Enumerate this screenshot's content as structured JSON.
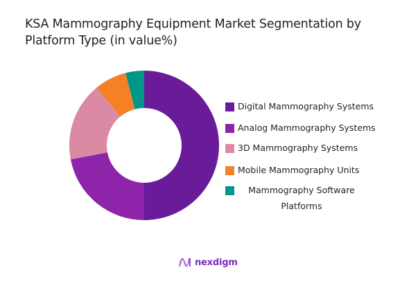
{
  "title": {
    "line1": "KSA Mammography Equipment Market Segmentation by",
    "line2": "Platform Type (in value%)"
  },
  "brand": {
    "name": "nexdigm",
    "icon": "nexdigm-wave-logo-icon",
    "color": "#7a2fb8"
  },
  "legend": {
    "items": [
      {
        "label": "Digital Mammography Systems",
        "color": "#6A1B9A"
      },
      {
        "label": "Analog Mammography Systems",
        "color": "#8E24AA"
      },
      {
        "label": "3D Mammography Systems",
        "color": "#DB8AA3"
      },
      {
        "label": "Mobile Mammography Units",
        "color": "#F58025"
      },
      {
        "label_line1": "Mammography Software",
        "label_line2": "Platforms",
        "label": "Mammography Software Platforms",
        "color": "#009688"
      }
    ]
  },
  "chart_data": {
    "type": "pie",
    "variant": "donut",
    "title": "KSA Mammography Equipment Market Segmentation by Platform Type (in value%)",
    "categories": [
      "Digital Mammography Systems",
      "Analog Mammography Systems",
      "3D Mammography Systems",
      "Mobile Mammography Units",
      "Mammography Software Platforms"
    ],
    "values": [
      50,
      22,
      17,
      7,
      4
    ],
    "unit": "%",
    "colors": [
      "#6A1B9A",
      "#8E24AA",
      "#DB8AA3",
      "#F58025",
      "#009688"
    ],
    "start_angle": "12 o'clock",
    "direction": "clockwise",
    "inner_radius_ratio": 0.5,
    "data_labels": false,
    "legend_position": "right"
  }
}
